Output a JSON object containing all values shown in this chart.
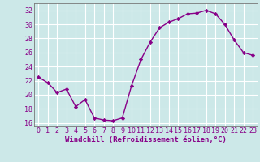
{
  "x": [
    0,
    1,
    2,
    3,
    4,
    5,
    6,
    7,
    8,
    9,
    10,
    11,
    12,
    13,
    14,
    15,
    16,
    17,
    18,
    19,
    20,
    21,
    22,
    23
  ],
  "y": [
    22.5,
    21.7,
    20.3,
    20.8,
    18.3,
    19.3,
    16.7,
    16.4,
    16.3,
    16.7,
    21.3,
    25.0,
    27.5,
    29.5,
    30.3,
    30.8,
    31.5,
    31.6,
    32.0,
    31.5,
    30.0,
    27.8,
    26.0,
    25.6
  ],
  "line_color": "#880088",
  "marker": "D",
  "marker_size": 2.2,
  "bg_color": "#cce8e8",
  "grid_color": "#ffffff",
  "xlabel": "Windchill (Refroidissement éolien,°C)",
  "xlabel_fontsize": 6.5,
  "tick_color": "#880088",
  "ylim": [
    15.5,
    33
  ],
  "yticks": [
    16,
    18,
    20,
    22,
    24,
    26,
    28,
    30,
    32
  ],
  "xticks": [
    0,
    1,
    2,
    3,
    4,
    5,
    6,
    7,
    8,
    9,
    10,
    11,
    12,
    13,
    14,
    15,
    16,
    17,
    18,
    19,
    20,
    21,
    22,
    23
  ],
  "tick_fontsize": 6.0,
  "line_width": 1.0,
  "spine_color": "#777777"
}
